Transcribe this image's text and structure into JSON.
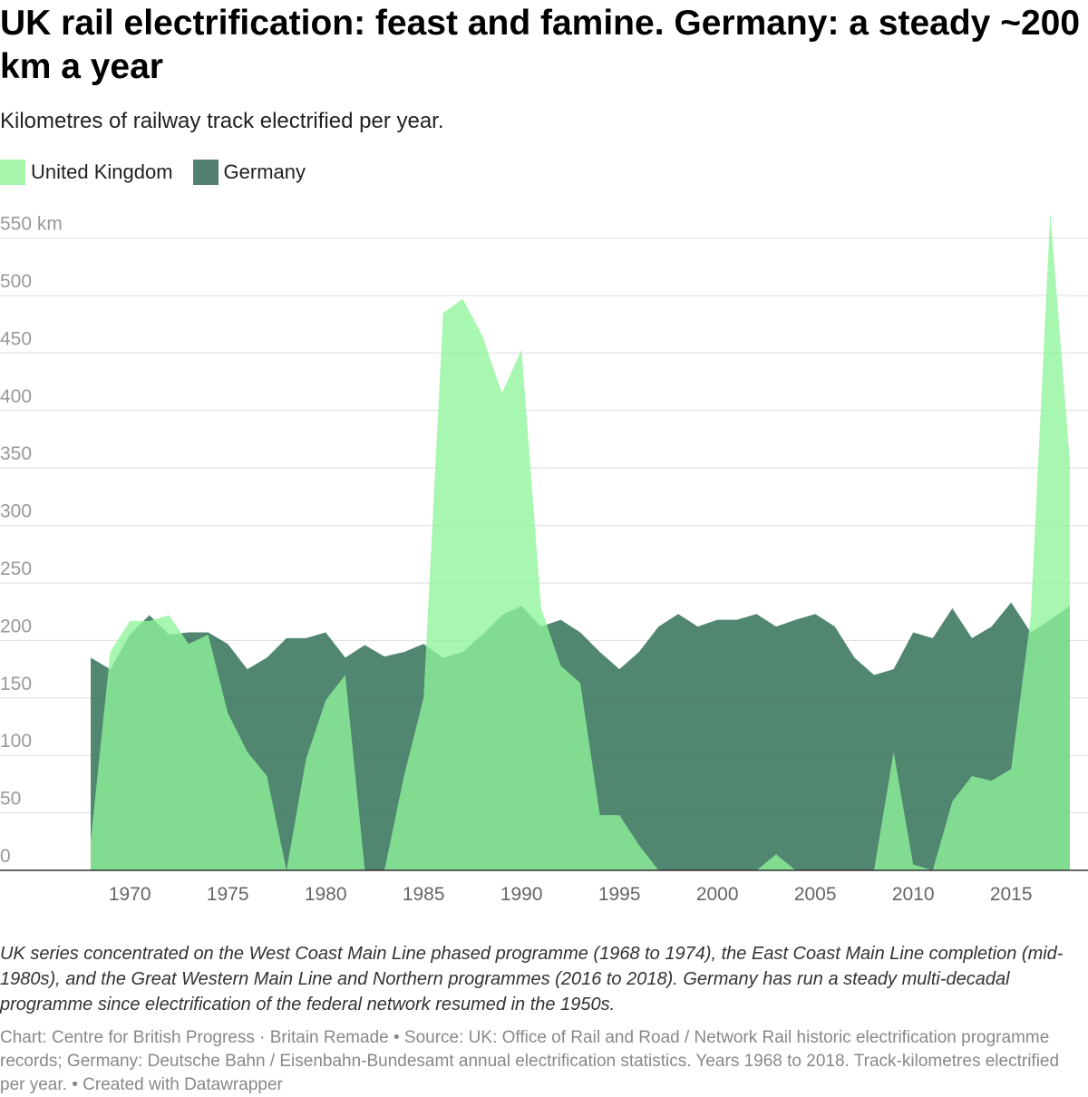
{
  "title": "UK rail electrification: feast and famine. Germany: a steady ~200 km a year",
  "subtitle": "Kilometres of railway track electrified per year.",
  "notes": "UK series concentrated on the West Coast Main Line phased programme (1968 to 1974), the East Coast Main Line completion (mid-1980s), and the Great Western Main Line and Northern programmes (2016 to 2018). Germany has run a steady multi-decadal programme since electrification of the federal network resumed in the 1950s.",
  "footer": "Chart: Centre for British Progress · Britain Remade • Source: UK: Office of Rail and Road / Network Rail historic electrification programme records; Germany: Deutsche Bahn / Eisenbahn-Bundesamt annual electrification statistics. Years 1968 to 2018. Track-kilometres electrified per year. • Created with Datawrapper",
  "colors": {
    "uk": "#8ef59a",
    "germany": "#2b6b52",
    "grid": "#dddddd",
    "axis_text": "#999999",
    "xaxis_text": "#666666"
  },
  "chart_data": {
    "type": "area",
    "x": [
      1968,
      1969,
      1970,
      1971,
      1972,
      1973,
      1974,
      1975,
      1976,
      1977,
      1978,
      1979,
      1980,
      1981,
      1982,
      1983,
      1984,
      1985,
      1986,
      1987,
      1988,
      1989,
      1990,
      1991,
      1992,
      1993,
      1994,
      1995,
      1996,
      1997,
      1998,
      1999,
      2000,
      2001,
      2002,
      2003,
      2004,
      2005,
      2006,
      2007,
      2008,
      2009,
      2010,
      2011,
      2012,
      2013,
      2014,
      2015,
      2016,
      2017,
      2018
    ],
    "series": [
      {
        "name": "Germany",
        "color": "#2b6b52",
        "values": [
          185,
          175,
          205,
          222,
          205,
          207,
          207,
          197,
          175,
          185,
          202,
          202,
          207,
          185,
          196,
          186,
          190,
          197,
          185,
          190,
          205,
          222,
          230,
          212,
          218,
          207,
          190,
          175,
          190,
          212,
          223,
          212,
          218,
          218,
          223,
          212,
          218,
          223,
          212,
          185,
          170,
          175,
          207,
          202,
          228,
          202,
          212,
          233,
          207,
          218,
          230
        ]
      },
      {
        "name": "United Kingdom",
        "color": "#8ef59a",
        "values": [
          25,
          190,
          217,
          217,
          222,
          197,
          205,
          137,
          103,
          82,
          0,
          97,
          148,
          170,
          0,
          0,
          82,
          150,
          485,
          497,
          465,
          415,
          453,
          228,
          178,
          163,
          48,
          48,
          22,
          0,
          0,
          0,
          0,
          0,
          0,
          14,
          0,
          0,
          0,
          0,
          0,
          103,
          5,
          0,
          60,
          82,
          78,
          88,
          220,
          572,
          355
        ]
      }
    ],
    "xticks": [
      "1970",
      "1975",
      "1980",
      "1985",
      "1990",
      "1995",
      "2000",
      "2005",
      "2010",
      "2015"
    ],
    "yticks": [
      "0",
      "50",
      "100",
      "150",
      "200",
      "250",
      "300",
      "350",
      "400",
      "450",
      "500",
      "550 km"
    ],
    "ylim": [
      0,
      575
    ],
    "xlim": [
      1968,
      2018
    ],
    "grid": true,
    "legend_position": "top-left"
  }
}
